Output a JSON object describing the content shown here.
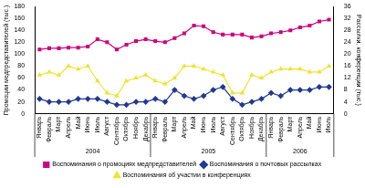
{
  "chart_data": {
    "type": "line",
    "categories": [
      "Январь",
      "Февраль",
      "Март",
      "Апрель",
      "Май",
      "Июнь",
      "Июль",
      "Август",
      "Сентябрь",
      "Октябрь",
      "Ноябрь",
      "Декабрь",
      "Январь",
      "Февраль",
      "Март",
      "Апрель",
      "Май",
      "Июнь",
      "Июль",
      "Август",
      "Сентябрь",
      "Октябрь",
      "Ноябрь",
      "Декабрь",
      "Январь",
      "Февраль",
      "Март",
      "Апрель",
      "Май",
      "Июнь",
      "Июль"
    ],
    "x_groups": [
      {
        "label": "2004",
        "count": 12
      },
      {
        "label": "2005",
        "count": 12
      },
      {
        "label": "2006",
        "count": 7
      }
    ],
    "y_label": "Промоции медпредставителей (тыс.)",
    "y2_label": "Рассылки, конференции (тыс.)",
    "ylim": [
      0,
      180
    ],
    "yticks": [
      0,
      20,
      40,
      60,
      80,
      100,
      120,
      140,
      160,
      180
    ],
    "y2lim": [
      0,
      36
    ],
    "y2ticks": [
      0,
      4,
      8,
      12,
      16,
      20,
      24,
      28,
      32,
      36
    ],
    "grid": false,
    "legend": "bottom",
    "series": [
      {
        "name": "Воспоминания о промоциях медпредставителей",
        "color": "#cc0080",
        "marker": "square",
        "axis": "y",
        "values": [
          108,
          110,
          110,
          111,
          111,
          113,
          125,
          120,
          108,
          116,
          122,
          125,
          122,
          120,
          127,
          135,
          148,
          147,
          137,
          133,
          133,
          133,
          128,
          130,
          135,
          137,
          140,
          145,
          148,
          155,
          158
        ]
      },
      {
        "name": "Воспоминания о почтовых рассылках",
        "color": "#1f3a93",
        "marker": "diamond",
        "axis": "y2",
        "values": [
          5,
          4,
          4,
          4,
          5,
          5,
          5,
          4,
          3,
          3,
          4,
          4,
          5,
          4,
          8,
          6,
          5,
          6,
          8,
          9,
          5,
          3,
          4,
          5,
          7,
          6,
          8,
          8,
          8,
          9,
          9
        ]
      },
      {
        "name": "Воспоминания об участии в конференциях",
        "color": "#f2e22e",
        "marker": "triangle",
        "axis": "y2",
        "values": [
          13,
          14,
          13,
          16,
          15,
          16,
          11,
          7,
          6,
          11,
          12,
          13,
          11,
          10,
          12,
          16,
          16,
          15,
          14,
          13,
          7,
          7,
          13,
          12,
          14,
          15,
          15,
          15,
          14,
          14,
          16
        ]
      }
    ]
  }
}
